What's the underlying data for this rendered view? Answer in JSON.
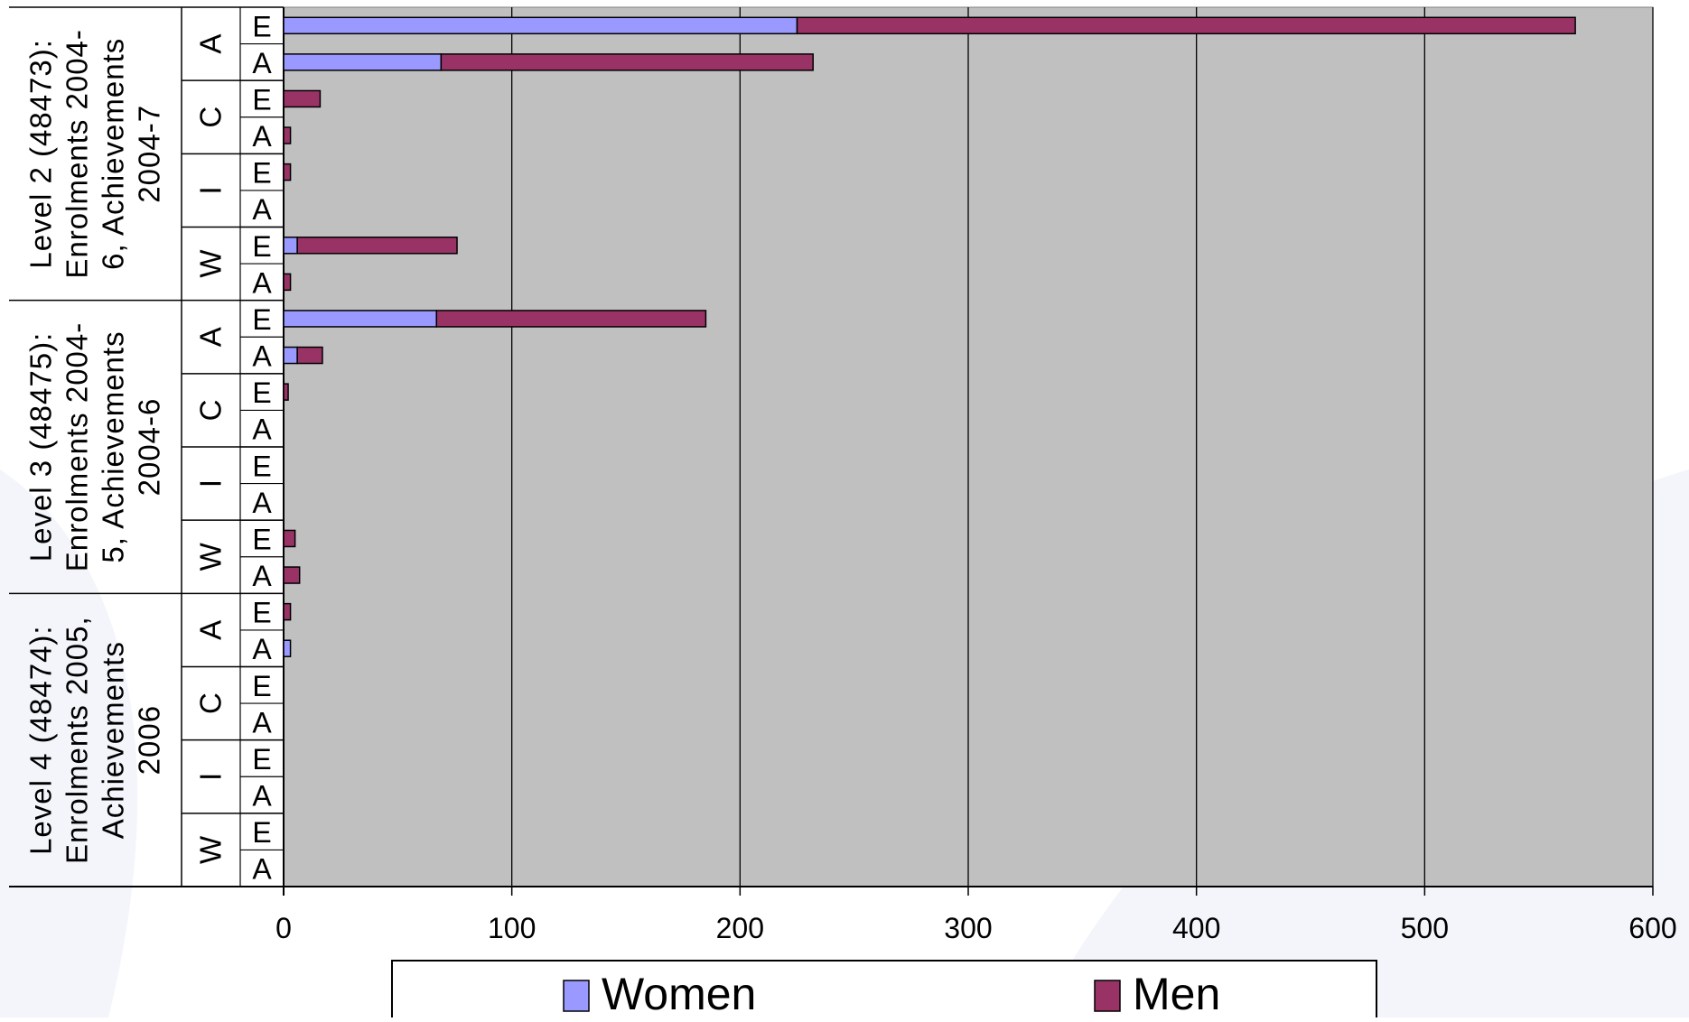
{
  "chart_data": {
    "type": "bar",
    "orientation": "horizontal",
    "stacked": true,
    "xlim": [
      0,
      600
    ],
    "x_ticks": [
      "0",
      "100",
      "200",
      "300",
      "400",
      "500",
      "600"
    ],
    "grid": "vertical",
    "legend": {
      "placement": "bottom",
      "entries": [
        "Women",
        "Men"
      ]
    },
    "colors": {
      "Women": "#9999FF",
      "Men": "#993366",
      "plot_background": "#C0C0C0",
      "grid": "#000000"
    },
    "groups": [
      {
        "label": "Level 2 (48473): Enrolments 2004-6, Achievements 2004-7",
        "label_lines": [
          "Level 2 (48473):",
          "Enrolments 2004-",
          "6, Achievements",
          "2004-7"
        ],
        "subgroups": [
          "A",
          "C",
          "I",
          "W"
        ]
      },
      {
        "label": "Level 3 (48475): Enrolments 2004-5, Achievements 2004-6",
        "label_lines": [
          "Level 3 (48475):",
          "Enrolments 2004-",
          "5, Achievements",
          "2004-6"
        ],
        "subgroups": [
          "A",
          "C",
          "I",
          "W"
        ]
      },
      {
        "label": "Level 4 (48474): Enrolments 2005, Achievements 2006",
        "label_lines": [
          "Level 4 (48474):",
          "Enrolments 2005,",
          "Achievements",
          "2006"
        ],
        "subgroups": [
          "A",
          "C",
          "I",
          "W"
        ]
      }
    ],
    "rows": [
      {
        "group": 0,
        "sub": "A",
        "cat": "E",
        "women": 225,
        "men": 341
      },
      {
        "group": 0,
        "sub": "A",
        "cat": "A",
        "women": 69,
        "men": 163
      },
      {
        "group": 0,
        "sub": "C",
        "cat": "E",
        "women": 0,
        "men": 16
      },
      {
        "group": 0,
        "sub": "C",
        "cat": "A",
        "women": 0,
        "men": 3
      },
      {
        "group": 0,
        "sub": "I",
        "cat": "E",
        "women": 0,
        "men": 3
      },
      {
        "group": 0,
        "sub": "I",
        "cat": "A",
        "women": 0,
        "men": 0
      },
      {
        "group": 0,
        "sub": "W",
        "cat": "E",
        "women": 6,
        "men": 70
      },
      {
        "group": 0,
        "sub": "W",
        "cat": "A",
        "women": 0,
        "men": 3
      },
      {
        "group": 1,
        "sub": "A",
        "cat": "E",
        "women": 67,
        "men": 118
      },
      {
        "group": 1,
        "sub": "A",
        "cat": "A",
        "women": 6,
        "men": 11
      },
      {
        "group": 1,
        "sub": "C",
        "cat": "E",
        "women": 0,
        "men": 2
      },
      {
        "group": 1,
        "sub": "C",
        "cat": "A",
        "women": 0,
        "men": 0
      },
      {
        "group": 1,
        "sub": "I",
        "cat": "E",
        "women": 0,
        "men": 0
      },
      {
        "group": 1,
        "sub": "I",
        "cat": "A",
        "women": 0,
        "men": 0
      },
      {
        "group": 1,
        "sub": "W",
        "cat": "E",
        "women": 0,
        "men": 5
      },
      {
        "group": 1,
        "sub": "W",
        "cat": "A",
        "women": 0,
        "men": 7
      },
      {
        "group": 2,
        "sub": "A",
        "cat": "E",
        "women": 0,
        "men": 3
      },
      {
        "group": 2,
        "sub": "A",
        "cat": "A",
        "women": 3,
        "men": 0
      },
      {
        "group": 2,
        "sub": "C",
        "cat": "E",
        "women": 0,
        "men": 0
      },
      {
        "group": 2,
        "sub": "C",
        "cat": "A",
        "women": 0,
        "men": 0
      },
      {
        "group": 2,
        "sub": "I",
        "cat": "E",
        "women": 0,
        "men": 0
      },
      {
        "group": 2,
        "sub": "I",
        "cat": "A",
        "women": 0,
        "men": 0
      },
      {
        "group": 2,
        "sub": "W",
        "cat": "E",
        "women": 0,
        "men": 0
      },
      {
        "group": 2,
        "sub": "W",
        "cat": "A",
        "women": 0,
        "men": 0
      }
    ]
  }
}
